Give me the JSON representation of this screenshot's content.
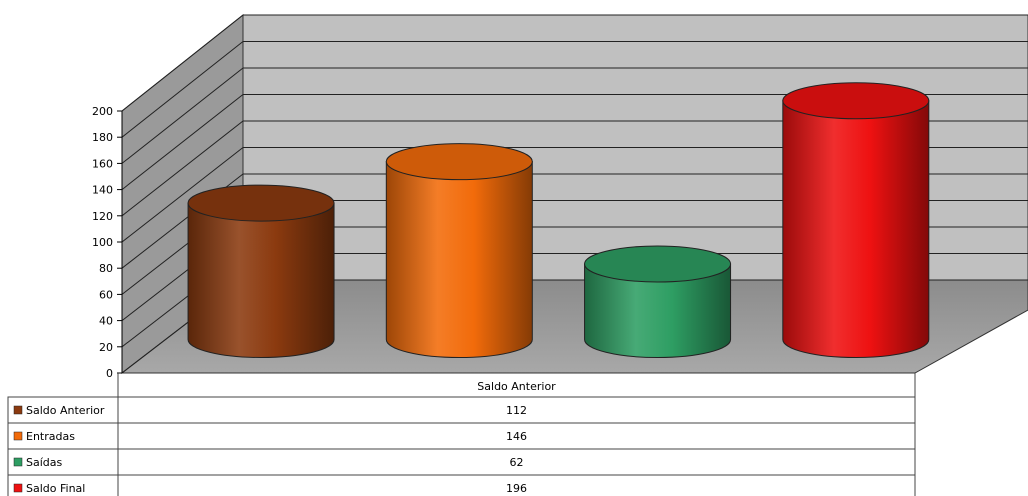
{
  "chart_data": {
    "type": "bar",
    "categories": [
      "Saldo Anterior"
    ],
    "series": [
      {
        "name": "Saldo Anterior",
        "values": [
          112
        ],
        "color": "#8B3A0F"
      },
      {
        "name": "Entradas",
        "values": [
          146
        ],
        "color": "#F26B0A"
      },
      {
        "name": "Saídas",
        "values": [
          62
        ],
        "color": "#2E9E63"
      },
      {
        "name": "Saldo Final",
        "values": [
          196
        ],
        "color": "#EE1111"
      }
    ],
    "title": "",
    "xlabel": "",
    "ylabel": "",
    "ylim": [
      0,
      200
    ],
    "yticks": [
      0,
      20,
      40,
      60,
      80,
      100,
      120,
      140,
      160,
      180,
      200
    ],
    "grid": true,
    "legend": "data-table",
    "style": "3d-cylinder"
  }
}
